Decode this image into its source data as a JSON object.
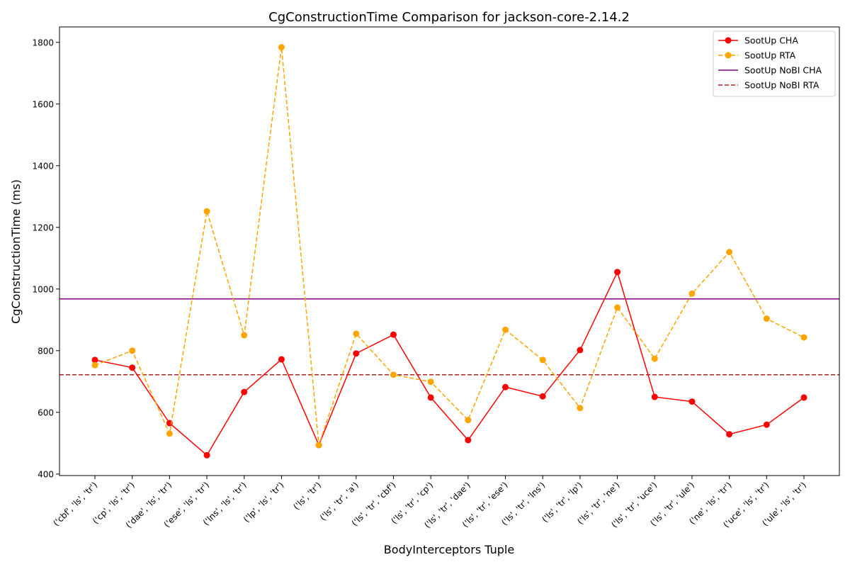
{
  "chart_data": {
    "type": "line",
    "title": "CgConstructionTime Comparison for jackson-core-2.14.2",
    "xlabel": "BodyInterceptors Tuple",
    "ylabel": "CgConstructionTime (ms)",
    "ylim": [
      395,
      1850
    ],
    "yticks": [
      400,
      600,
      800,
      1000,
      1200,
      1400,
      1600,
      1800
    ],
    "grid": false,
    "legend_position": "top-right",
    "categories": [
      "('cbf', 'ls', 'tr')",
      "('cp', 'ls', 'tr')",
      "('dae', 'ls', 'tr')",
      "('ese', 'ls', 'tr')",
      "('lns', 'ls', 'tr')",
      "('lp', 'ls', 'tr')",
      "('ls', 'tr')",
      "('ls', 'tr', 'a')",
      "('ls', 'tr', 'cbf')",
      "('ls', 'tr', 'cp')",
      "('ls', 'tr', 'dae')",
      "('ls', 'tr', 'ese')",
      "('ls', 'tr', 'lns')",
      "('ls', 'tr', 'lp')",
      "('ls', 'tr', 'ne')",
      "('ls', 'tr', 'uce')",
      "('ls', 'tr', 'ule')",
      "('ne', 'ls', 'tr')",
      "('uce', 'ls', 'tr')",
      "('ule', 'ls', 'tr')"
    ],
    "series": [
      {
        "name": "SootUp CHA",
        "color": "#ff0000",
        "style": "solid",
        "marker": "circle",
        "values": [
          770,
          745,
          565,
          461,
          666,
          772,
          494,
          791,
          852,
          648,
          510,
          682,
          652,
          802,
          1055,
          650,
          635,
          529,
          560,
          648
        ]
      },
      {
        "name": "SootUp RTA",
        "color": "#ffa500",
        "style": "dashed",
        "marker": "circle",
        "values": [
          753,
          800,
          531,
          1252,
          850,
          1784,
          494,
          855,
          722,
          699,
          575,
          868,
          770,
          614,
          940,
          774,
          985,
          1120,
          904,
          843
        ]
      }
    ],
    "reference_lines": [
      {
        "name": "SootUp NoBI CHA",
        "color": "#800080",
        "style": "solid",
        "value": 968
      },
      {
        "name": "SootUp NoBI RTA",
        "color": "#b22222",
        "style": "dashed",
        "value": 722
      }
    ]
  }
}
